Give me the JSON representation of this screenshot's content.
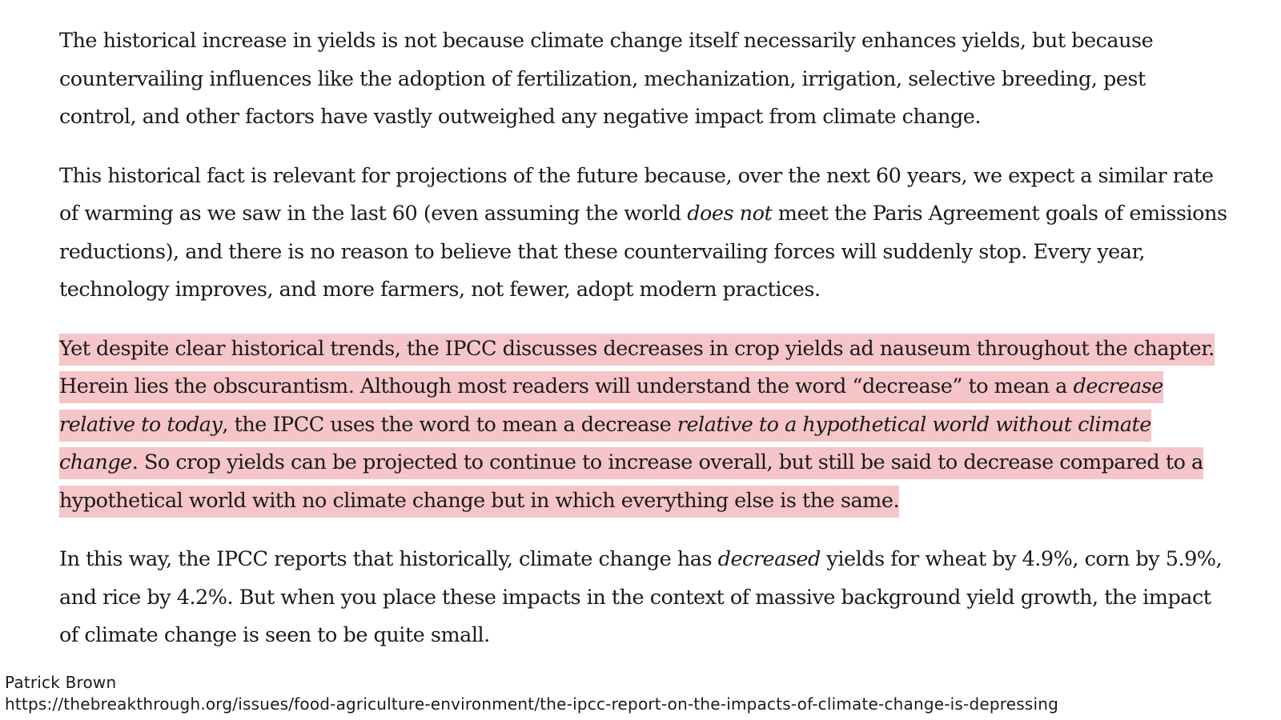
{
  "paragraphs": [
    {
      "text": "The historical increase in yields is not because climate change itself necessarily enhances yields, but because countervailing influences like the adoption of fertilization, mechanization, irrigation, selective breeding, pest control, and other factors have vastly outweighed any negative impact from climate change."
    },
    {
      "part1": "This historical fact is relevant for projections of the future because, over the next 60 years, we expect a similar rate of warming as we saw in the last 60 (even assuming the world ",
      "em1": "does not",
      "part2": " meet the Paris Agreement goals of emissions reductions), and there is no reason to believe that these countervailing forces will suddenly stop. Every year, technology improves, and more farmers, not fewer, adopt modern practices."
    },
    {
      "highlighted": true,
      "part1": "Yet despite clear historical trends, the IPCC discusses decreases in crop yields ad nauseum throughout the chapter. Herein lies the obscurantism. Although most readers will understand the word “decrease” to mean a ",
      "em1": "decrease relative to today",
      "part2": ", the IPCC uses the word to mean a decrease ",
      "em2": "relative to a hypothetical world without climate change",
      "part3": ". So crop yields can be projected to continue to increase overall, but still be said to decrease compared to a hypothetical world with no climate change but in which everything else is the same."
    },
    {
      "part1": "In this way, the IPCC reports that historically, climate change has ",
      "em1": "decreased",
      "part2": " yields for wheat by 4.9%, corn by 5.9%, and rice by 4.2%. But when you place these impacts in the context of massive background yield growth, the impact of climate change is seen to be quite small."
    }
  ],
  "credit": {
    "author": "Patrick Brown",
    "url": "https://thebreakthrough.org/issues/food-agriculture-environment/the-ipcc-report-on-the-impacts-of-climate-change-is-depressing"
  },
  "colors": {
    "highlight": "#f5c5c8",
    "text": "#1a1a1a",
    "background": "#ffffff"
  }
}
